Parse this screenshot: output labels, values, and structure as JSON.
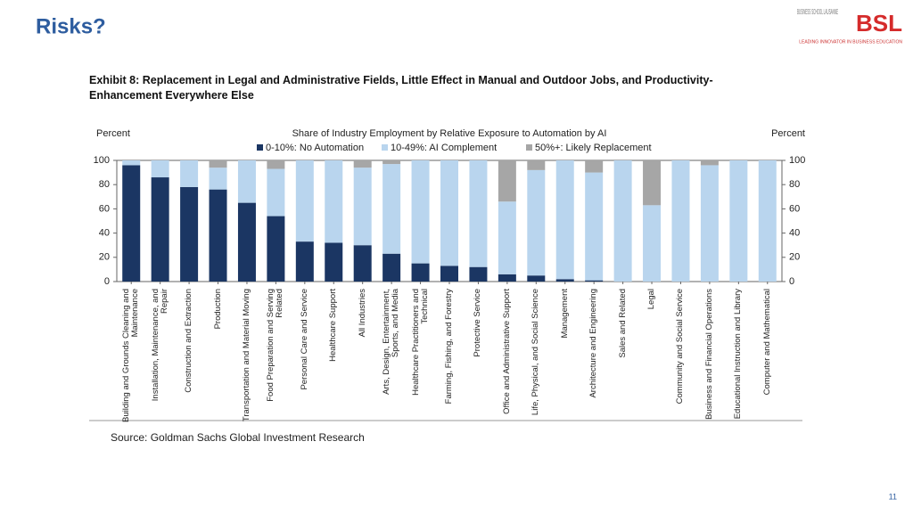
{
  "slide_title": "Risks?",
  "logo": {
    "school": "BUSINESS SCHOOL LAUSANNE",
    "mark": "BSL",
    "tagline": "LEADING INNOVATOR IN BUSINESS EDUCATION"
  },
  "page_number": "11",
  "chart_data": {
    "type": "stacked_bar",
    "title": "Exhibit 8: Replacement in Legal and Administrative Fields, Little Effect in Manual and Outdoor Jobs, and Productivity-Enhancement Everywhere Else",
    "subtitle": "Share of Industry Employment by Relative Exposure to Automation by AI",
    "ylabel": "Percent",
    "y2label": "Percent",
    "source": "Source: Goldman Sachs Global Investment Research",
    "categories": [
      "Building and Grounds Cleaning and Maintenance",
      "Installation, Maintenance, and Repair",
      "Construction and Extraction",
      "Production",
      "Transportation and Material Moving",
      "Food Preparation and Serving Related",
      "Personal Care and Service",
      "Healthcare Support",
      "All Industries",
      "Arts, Design, Entertainment, Sports, and Media",
      "Healthcare Practitioners and Technical",
      "Farming, Fishing, and Forestry",
      "Protective Service",
      "Office and Administrative Support",
      "Life, Physical, and Social Science",
      "Management",
      "Architecture and Engineering",
      "Sales and Related",
      "Legal",
      "Community and Social Service",
      "Business and Financial Operations",
      "Educational Instruction and Library",
      "Computer and Mathematical"
    ],
    "series": [
      {
        "name": "0-10%: No Automation",
        "color": "#1b3663",
        "values": [
          96,
          86,
          78,
          76,
          65,
          54,
          33,
          32,
          30,
          23,
          15,
          13,
          12,
          6,
          5,
          2,
          1,
          0,
          0,
          0,
          0,
          0,
          0
        ]
      },
      {
        "name": "10-49%: AI Complement",
        "color": "#b9d5ee",
        "values": [
          4,
          14,
          22,
          18,
          35,
          39,
          67,
          68,
          64,
          74,
          85,
          87,
          88,
          60,
          87,
          98,
          89,
          100,
          63,
          100,
          96,
          100,
          100
        ]
      },
      {
        "name": "50%+: Likely Replacement",
        "color": "#a6a6a6",
        "values": [
          0,
          0,
          0,
          6,
          0,
          7,
          0,
          0,
          6,
          3,
          0,
          0,
          0,
          34,
          8,
          0,
          10,
          0,
          37,
          0,
          4,
          0,
          0
        ]
      }
    ],
    "ylim": [
      0,
      100
    ],
    "yticks": [
      0,
      20,
      40,
      60,
      80,
      100
    ],
    "y2lim": [
      0,
      100
    ],
    "y2ticks": [
      0,
      20,
      40,
      60,
      80,
      100
    ]
  }
}
